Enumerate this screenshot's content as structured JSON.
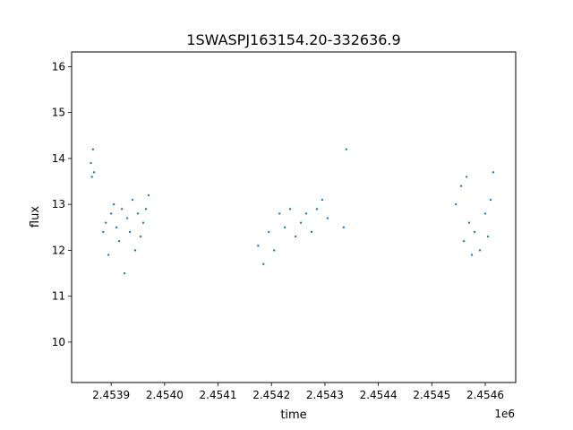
{
  "chart_data": {
    "type": "scatter",
    "title": "1SWASPJ163154.20-332636.9",
    "xlabel": "time",
    "ylabel": "flux",
    "x_offset_label": "1e6",
    "xlim": [
      2453826,
      2454657
    ],
    "ylim": [
      9.12,
      16.32
    ],
    "x_ticks": [
      {
        "value": 2453900,
        "label": "2.4539"
      },
      {
        "value": 2454000,
        "label": "2.4540"
      },
      {
        "value": 2454100,
        "label": "2.4541"
      },
      {
        "value": 2454200,
        "label": "2.4542"
      },
      {
        "value": 2454300,
        "label": "2.4543"
      },
      {
        "value": 2454400,
        "label": "2.4544"
      },
      {
        "value": 2454500,
        "label": "2.4545"
      },
      {
        "value": 2454600,
        "label": "2.4546"
      }
    ],
    "y_ticks": [
      {
        "value": 10,
        "label": "10"
      },
      {
        "value": 11,
        "label": "11"
      },
      {
        "value": 12,
        "label": "12"
      },
      {
        "value": 13,
        "label": "13"
      },
      {
        "value": 14,
        "label": "14"
      },
      {
        "value": 15,
        "label": "15"
      },
      {
        "value": 16,
        "label": "16"
      }
    ],
    "grid": false,
    "marker_color": "#1f77b4",
    "series": [
      {
        "points": [
          [
            2453862,
            13.9
          ],
          [
            2453864,
            13.6
          ],
          [
            2453866,
            14.2
          ],
          [
            2453868,
            13.7
          ],
          [
            2453885,
            12.4
          ],
          [
            2453890,
            12.6
          ],
          [
            2453895,
            11.9
          ],
          [
            2453900,
            12.8
          ],
          [
            2453905,
            13.0
          ],
          [
            2453910,
            12.5
          ],
          [
            2453915,
            12.2
          ],
          [
            2453920,
            12.9
          ],
          [
            2453925,
            11.5
          ],
          [
            2453930,
            12.7
          ],
          [
            2453935,
            12.4
          ],
          [
            2453940,
            13.1
          ],
          [
            2453945,
            12.0
          ],
          [
            2453950,
            12.8
          ],
          [
            2453955,
            12.3
          ],
          [
            2453960,
            12.6
          ],
          [
            2453965,
            12.9
          ],
          [
            2453970,
            13.2
          ],
          [
            2454175,
            12.1
          ],
          [
            2454185,
            11.7
          ],
          [
            2454195,
            12.4
          ],
          [
            2454205,
            12.0
          ],
          [
            2454215,
            12.8
          ],
          [
            2454225,
            12.5
          ],
          [
            2454235,
            12.9
          ],
          [
            2454245,
            12.3
          ],
          [
            2454255,
            12.6
          ],
          [
            2454265,
            12.8
          ],
          [
            2454275,
            12.4
          ],
          [
            2454285,
            12.9
          ],
          [
            2454295,
            13.1
          ],
          [
            2454305,
            12.7
          ],
          [
            2454335,
            12.5
          ],
          [
            2454340,
            14.2
          ],
          [
            2454545,
            13.0
          ],
          [
            2454555,
            13.4
          ],
          [
            2454560,
            12.2
          ],
          [
            2454565,
            13.6
          ],
          [
            2454570,
            12.6
          ],
          [
            2454575,
            11.9
          ],
          [
            2454580,
            12.4
          ],
          [
            2454590,
            12.0
          ],
          [
            2454600,
            12.8
          ],
          [
            2454605,
            12.3
          ],
          [
            2454610,
            13.1
          ],
          [
            2454615,
            13.7
          ]
        ]
      }
    ]
  }
}
